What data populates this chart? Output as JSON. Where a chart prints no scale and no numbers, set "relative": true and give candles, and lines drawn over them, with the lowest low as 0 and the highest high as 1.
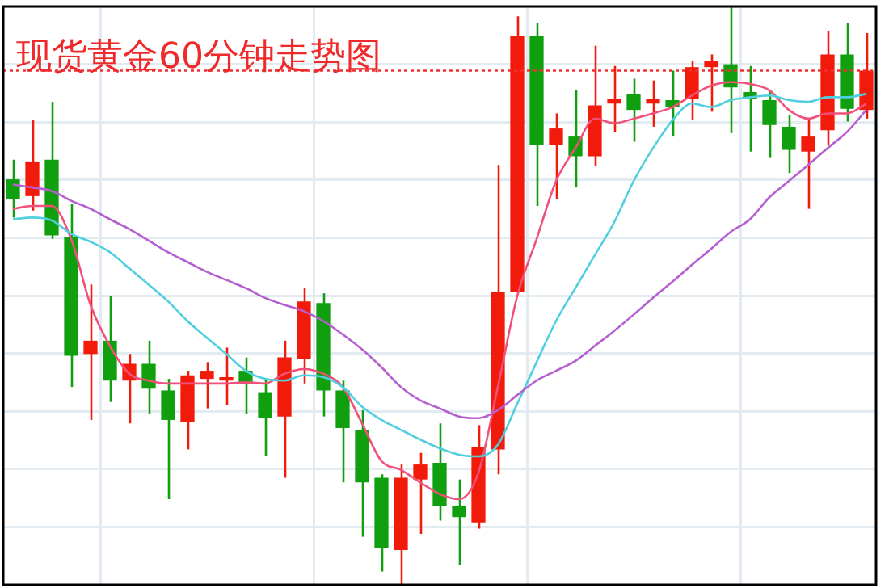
{
  "chart_data": {
    "type": "candlestick",
    "title": "现货黄金60分钟走势图",
    "relative": true,
    "grid": true,
    "categories": [
      null,
      null,
      null,
      null,
      null,
      null,
      null,
      null,
      null,
      null,
      null,
      null,
      null,
      null,
      null,
      null,
      null,
      null,
      null,
      null,
      null,
      null,
      null,
      null,
      null,
      null,
      null,
      null,
      null,
      null,
      null,
      null,
      null,
      null,
      null,
      null,
      null,
      null,
      null,
      null,
      null,
      null,
      null,
      null,
      null
    ],
    "ohlc": [
      [
        0.701,
        0.735,
        0.635,
        0.667
      ],
      [
        0.672,
        0.803,
        0.647,
        0.732
      ],
      [
        0.735,
        0.835,
        0.598,
        0.604
      ],
      [
        0.601,
        0.658,
        0.342,
        0.396
      ],
      [
        0.399,
        0.519,
        0.285,
        0.422
      ],
      [
        0.422,
        0.499,
        0.316,
        0.353
      ],
      [
        0.353,
        0.399,
        0.279,
        0.382
      ],
      [
        0.382,
        0.422,
        0.296,
        0.339
      ],
      [
        0.336,
        0.356,
        0.148,
        0.285
      ],
      [
        0.282,
        0.37,
        0.234,
        0.362
      ],
      [
        0.356,
        0.385,
        0.305,
        0.37
      ],
      [
        0.353,
        0.41,
        0.311,
        0.359
      ],
      [
        0.37,
        0.393,
        0.296,
        0.348
      ],
      [
        0.333,
        0.356,
        0.222,
        0.288
      ],
      [
        0.291,
        0.422,
        0.185,
        0.393
      ],
      [
        0.39,
        0.513,
        0.348,
        0.49
      ],
      [
        0.487,
        0.504,
        0.291,
        0.336
      ],
      [
        0.336,
        0.353,
        0.177,
        0.271
      ],
      [
        0.268,
        0.302,
        0.083,
        0.177
      ],
      [
        0.185,
        0.191,
        0.023,
        0.063
      ],
      [
        0.06,
        0.208,
        0,
        0.185
      ],
      [
        0.182,
        0.228,
        0.088,
        0.208
      ],
      [
        0.211,
        0.279,
        0.111,
        0.137
      ],
      [
        0.137,
        0.182,
        0.034,
        0.117
      ],
      [
        0.108,
        0.276,
        0.097,
        0.239
      ],
      [
        0.234,
        0.726,
        0.191,
        0.507
      ],
      [
        0.507,
        0.983,
        0.507,
        0.949
      ],
      [
        0.949,
        0.972,
        0.655,
        0.761
      ],
      [
        0.761,
        0.815,
        0.667,
        0.789
      ],
      [
        0.775,
        0.855,
        0.687,
        0.741
      ],
      [
        0.741,
        0.932,
        0.724,
        0.829
      ],
      [
        0.832,
        0.897,
        0.783,
        0.84
      ],
      [
        0.849,
        0.875,
        0.766,
        0.821
      ],
      [
        0.832,
        0.872,
        0.792,
        0.84
      ],
      [
        0.838,
        0.889,
        0.775,
        0.826
      ],
      [
        0.84,
        0.906,
        0.803,
        0.895
      ],
      [
        0.895,
        0.917,
        0.818,
        0.906
      ],
      [
        0.9,
        1,
        0.781,
        0.86
      ],
      [
        0.852,
        0.897,
        0.749,
        0.84
      ],
      [
        0.838,
        0.855,
        0.738,
        0.795
      ],
      [
        0.792,
        0.812,
        0.712,
        0.752
      ],
      [
        0.749,
        0.806,
        0.65,
        0.775
      ],
      [
        0.786,
        0.957,
        0.761,
        0.917
      ],
      [
        0.917,
        0.972,
        0.801,
        0.823
      ],
      [
        0.821,
        0.954,
        0.806,
        0.889
      ]
    ],
    "colors": [
      "#0f9f0f",
      "#f21b0b",
      "#0f9f0f",
      "#0f9f0f",
      "#f21b0b",
      "#0f9f0f",
      "#f21b0b",
      "#0f9f0f",
      "#0f9f0f",
      "#f21b0b",
      "#f21b0b",
      "#f21b0b",
      "#0f9f0f",
      "#0f9f0f",
      "#f21b0b",
      "#f21b0b",
      "#0f9f0f",
      "#0f9f0f",
      "#0f9f0f",
      "#0f9f0f",
      "#f21b0b",
      "#f21b0b",
      "#0f9f0f",
      "#0f9f0f",
      "#f21b0b",
      "#f21b0b",
      "#f21b0b",
      "#0f9f0f",
      "#f21b0b",
      "#0f9f0f",
      "#f21b0b",
      "#f21b0b",
      "#0f9f0f",
      "#f21b0b",
      "#0f9f0f",
      "#f21b0b",
      "#f21b0b",
      "#0f9f0f",
      "#0f9f0f",
      "#0f9f0f",
      "#0f9f0f",
      "#f21b0b",
      "#f21b0b",
      "#0f9f0f",
      "#f21b0b"
    ],
    "series": [
      {
        "type": "line",
        "color": "#b55fd0",
        "values": [
          0.692,
          0.687,
          0.681,
          0.664,
          0.65,
          0.632,
          0.615,
          0.595,
          0.575,
          0.558,
          0.541,
          0.527,
          0.513,
          0.496,
          0.484,
          0.473,
          0.456,
          0.433,
          0.407,
          0.376,
          0.342,
          0.319,
          0.305,
          0.291,
          0.288,
          0.302,
          0.328,
          0.353,
          0.37,
          0.387,
          0.413,
          0.439,
          0.467,
          0.496,
          0.524,
          0.553,
          0.581,
          0.61,
          0.632,
          0.67,
          0.698,
          0.726,
          0.755,
          0.783,
          0.821
        ]
      },
      {
        "type": "line",
        "color": "#4fcfe0",
        "values": [
          0.632,
          0.635,
          0.63,
          0.607,
          0.593,
          0.575,
          0.547,
          0.519,
          0.49,
          0.456,
          0.427,
          0.399,
          0.37,
          0.356,
          0.353,
          0.362,
          0.359,
          0.342,
          0.308,
          0.285,
          0.268,
          0.251,
          0.236,
          0.225,
          0.222,
          0.242,
          0.313,
          0.385,
          0.456,
          0.513,
          0.57,
          0.627,
          0.698,
          0.755,
          0.803,
          0.832,
          0.826,
          0.838,
          0.843,
          0.846,
          0.838,
          0.835,
          0.843,
          0.843,
          0.849
        ]
      },
      {
        "type": "line",
        "color": "#f0507a",
        "values": [
          0.65,
          0.655,
          0.655,
          0.598,
          0.484,
          0.413,
          0.365,
          0.353,
          0.348,
          0.348,
          0.348,
          0.348,
          0.35,
          0.348,
          0.365,
          0.373,
          0.365,
          0.342,
          0.279,
          0.214,
          0.199,
          0.177,
          0.157,
          0.148,
          0.194,
          0.342,
          0.499,
          0.598,
          0.698,
          0.755,
          0.806,
          0.798,
          0.806,
          0.815,
          0.826,
          0.846,
          0.863,
          0.869,
          0.866,
          0.855,
          0.821,
          0.806,
          0.815,
          0.815,
          0.832
        ]
      }
    ],
    "ref_lines": [
      {
        "axis": "y",
        "value": 0.889,
        "color": "#f03030",
        "line_style": "dotted"
      }
    ]
  }
}
